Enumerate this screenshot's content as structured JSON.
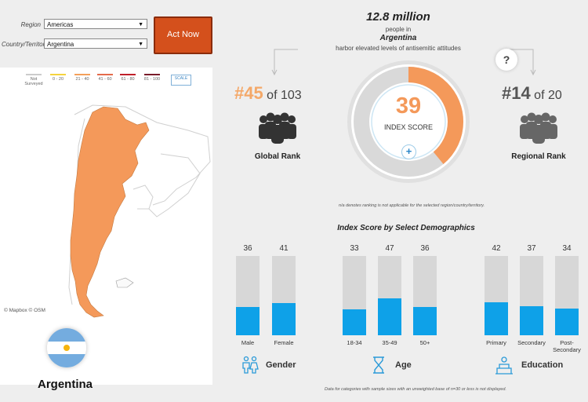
{
  "filters": {
    "region_label": "Region",
    "region_value": "Americas",
    "country_label": "Country/Territory",
    "country_value": "Argentina",
    "act_button": "Act Now"
  },
  "legend": {
    "items": [
      {
        "label": "Not Surveyed",
        "color": "#cccccc"
      },
      {
        "label": "0 - 20",
        "color": "#f5d33d"
      },
      {
        "label": "21 - 40",
        "color": "#f4a05a"
      },
      {
        "label": "41 - 60",
        "color": "#e46a4b"
      },
      {
        "label": "61 - 80",
        "color": "#c0202a"
      },
      {
        "label": "81 - 100",
        "color": "#7a1c2a"
      }
    ],
    "scale_label": "SCALE"
  },
  "map": {
    "attribution": "© Mapbox © OSM",
    "country_name": "Argentina",
    "country_color": "#f4995a"
  },
  "headline": {
    "count": "12.8 million",
    "line1": "people in",
    "country": "Argentina",
    "line2": "harbor elevated levels of antisemitic attitudes"
  },
  "global_rank": {
    "rank": "#45",
    "of": "of 103",
    "label": "Global Rank"
  },
  "regional_rank": {
    "rank": "#14",
    "of": "of 20",
    "label": "Regional Rank"
  },
  "index": {
    "score": "39",
    "label": "INDEX SCORE",
    "percent": 39,
    "color": "#f4995a"
  },
  "help_icon": "?",
  "na_note": "n/a denotes ranking is not applicable for the selected region/country/territory.",
  "demographics": {
    "title": "Index Score by Select Demographics",
    "groups": [
      {
        "label": "Gender",
        "bars": [
          {
            "value": 36,
            "category": "Male"
          },
          {
            "value": 41,
            "category": "Female"
          }
        ]
      },
      {
        "label": "Age",
        "bars": [
          {
            "value": 33,
            "category": "18-34"
          },
          {
            "value": 47,
            "category": "35-49"
          },
          {
            "value": 36,
            "category": "50+"
          }
        ]
      },
      {
        "label": "Education",
        "bars": [
          {
            "value": 42,
            "category": "Primary"
          },
          {
            "value": 37,
            "category": "Secondary"
          },
          {
            "value": 34,
            "category": "Post-Secondary"
          }
        ]
      }
    ],
    "footnote": "Data for categories with sample sizes with an unweighted base of n=30 or less is not displayed."
  }
}
